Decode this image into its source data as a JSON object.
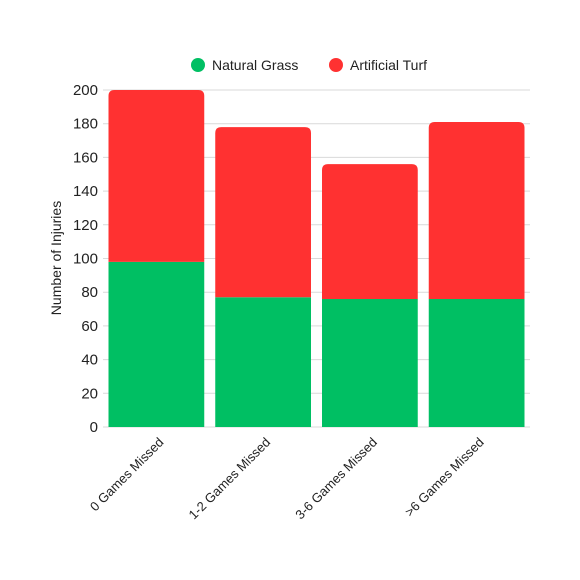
{
  "chart_data": {
    "type": "bar",
    "stacked": true,
    "categories": [
      "0 Games Missed",
      "1-2 Games Missed",
      "3-6 Games Missed",
      ">6 Games Missed"
    ],
    "series": [
      {
        "name": "Natural Grass",
        "color": "#00bf63",
        "values": [
          98,
          77,
          76,
          76
        ]
      },
      {
        "name": "Artificial Turf",
        "color": "#ff3131",
        "values": [
          102,
          101,
          80,
          105
        ]
      }
    ],
    "ylabel": "Number of Injuries",
    "xlabel": "",
    "ylim": [
      0,
      200
    ],
    "yticks": [
      0,
      20,
      40,
      60,
      80,
      100,
      120,
      140,
      160,
      180,
      200
    ],
    "grid": true,
    "legend_position": "top-center"
  }
}
